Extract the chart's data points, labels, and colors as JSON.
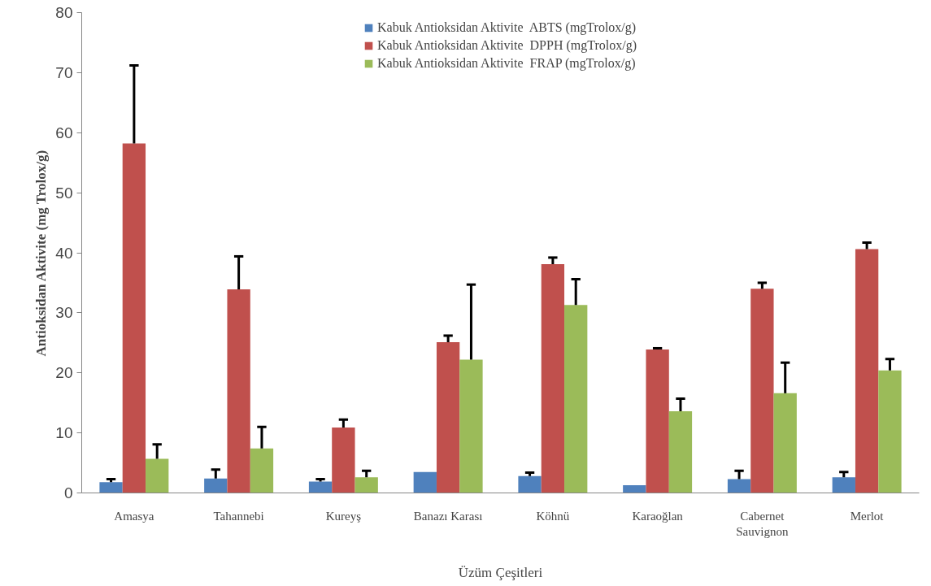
{
  "chart_data": {
    "type": "bar",
    "xlabel": "Üzüm Çeşitleri",
    "ylabel": "Antioksidan Aktivite (mg Trolox/g)",
    "categories": [
      "Amasya",
      "Tahannebi",
      "Kureyş",
      "Banazı Karası",
      "Köhnü",
      "Karaoğlan",
      "Cabernet Sauvignon",
      "Merlot"
    ],
    "series": [
      {
        "name": "Kabuk Antioksidan Aktivite  ABTS (mgTrolox/g)",
        "color": "#4f81bd",
        "values": [
          1.8,
          2.4,
          1.9,
          3.5,
          2.8,
          1.3,
          2.3,
          2.6
        ],
        "errors": [
          [
            1.8,
            2.3
          ],
          [
            2.4,
            3.9
          ],
          [
            1.9,
            2.3
          ],
          null,
          [
            2.8,
            3.4
          ],
          null,
          [
            2.3,
            3.7
          ],
          [
            2.6,
            3.5
          ]
        ]
      },
      {
        "name": "Kabuk Antioksidan Aktivite  DPPH (mgTrolox/g)",
        "color": "#c0504d",
        "values": [
          58.2,
          33.9,
          10.9,
          25.1,
          38.1,
          23.9,
          34.0,
          40.6
        ],
        "errors": [
          [
            58.2,
            71.2
          ],
          [
            33.9,
            39.4
          ],
          [
            10.9,
            12.2
          ],
          [
            25.1,
            26.2
          ],
          [
            38.1,
            39.2
          ],
          [
            23.9,
            24.1
          ],
          [
            34.0,
            35.0
          ],
          [
            40.6,
            41.7
          ]
        ]
      },
      {
        "name": "Kabuk Antioksidan Aktivite  FRAP (mgTrolox/g)",
        "color": "#9bbb59",
        "values": [
          5.7,
          7.4,
          2.6,
          22.2,
          31.3,
          13.6,
          16.6,
          20.4
        ],
        "errors": [
          [
            5.7,
            8.1
          ],
          [
            7.4,
            11.0
          ],
          [
            2.6,
            3.7
          ],
          [
            22.2,
            34.7
          ],
          [
            31.3,
            35.6
          ],
          [
            13.6,
            15.7
          ],
          [
            16.6,
            21.7
          ],
          [
            20.4,
            22.3
          ]
        ]
      }
    ],
    "ylim": [
      0,
      80
    ],
    "yticks": [
      0,
      10,
      20,
      30,
      40,
      50,
      60,
      70,
      80
    ],
    "grid": false,
    "legend": "top"
  }
}
